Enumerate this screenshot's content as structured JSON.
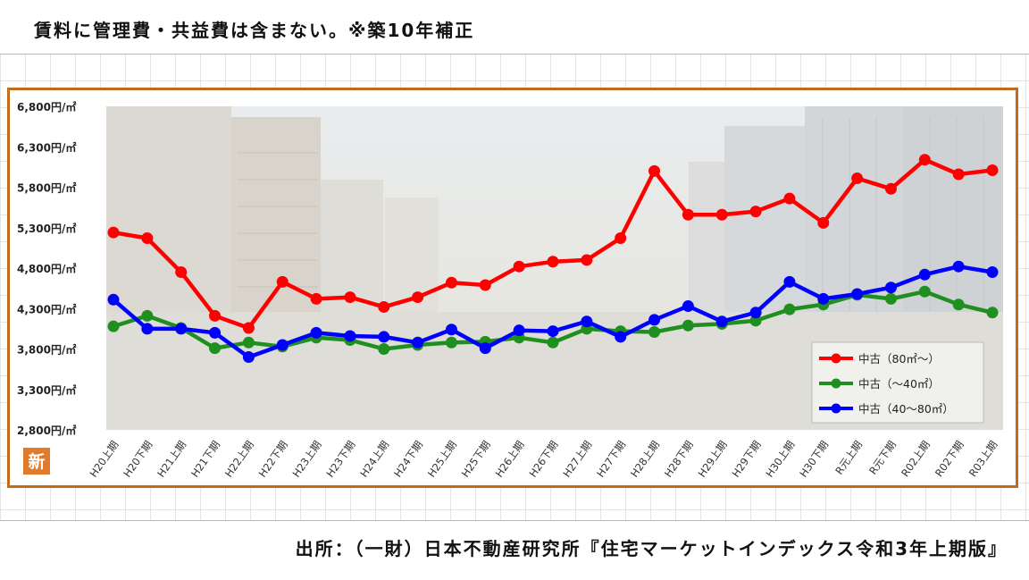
{
  "page": {
    "title": "賃料に管理費・共益費は含まない。※築10年補正",
    "source": "出所：（一財）日本不動産研究所『住宅マーケットインデックス令和3年上期版』",
    "logo_text": "新"
  },
  "chart_data": {
    "type": "line",
    "title": "",
    "xlabel": "",
    "ylabel": "",
    "ylim": [
      2800,
      6800
    ],
    "yticks": [
      2800,
      3300,
      3800,
      4300,
      4800,
      5300,
      5800,
      6300,
      6800
    ],
    "ytick_labels": [
      "2,800円/㎡",
      "3,300円/㎡",
      "3,800円/㎡",
      "4,300円/㎡",
      "4,800円/㎡",
      "5,300円/㎡",
      "5,800円/㎡",
      "6,300円/㎡",
      "6,800円/㎡"
    ],
    "categories": [
      "H20上期",
      "H20下期",
      "H21上期",
      "H21下期",
      "H22上期",
      "H22下期",
      "H23上期",
      "H23下期",
      "H24上期",
      "H24下期",
      "H25上期",
      "H25下期",
      "H26上期",
      "H26下期",
      "H27上期",
      "H27下期",
      "H28上期",
      "H28下期",
      "H29上期",
      "H29下期",
      "H30上期",
      "H30下期",
      "R元上期",
      "R元下期",
      "R02上期",
      "R02下期",
      "R03上期"
    ],
    "series": [
      {
        "name": "中古（80㎡～）",
        "color": "#ff0000",
        "values": [
          5240,
          5170,
          4750,
          4210,
          4060,
          4630,
          4420,
          4440,
          4320,
          4440,
          4620,
          4590,
          4820,
          4880,
          4900,
          5170,
          6000,
          5460,
          5460,
          5500,
          5660,
          5360,
          5910,
          5780,
          6140,
          5960,
          6010
        ]
      },
      {
        "name": "中古（～40㎡）",
        "color": "#1f8f1f",
        "values": [
          4080,
          4210,
          4060,
          3810,
          3880,
          3830,
          3940,
          3910,
          3800,
          3850,
          3880,
          3890,
          3940,
          3880,
          4050,
          4020,
          4010,
          4090,
          4110,
          4150,
          4290,
          4350,
          4470,
          4420,
          4510,
          4350,
          4250
        ]
      },
      {
        "name": "中古（40～80㎡）",
        "color": "#0000ff",
        "values": [
          4410,
          4050,
          4050,
          4000,
          3700,
          3850,
          4000,
          3960,
          3950,
          3880,
          4040,
          3810,
          4030,
          4020,
          4140,
          3950,
          4160,
          4330,
          4140,
          4250,
          4630,
          4420,
          4480,
          4560,
          4720,
          4820,
          4750
        ]
      }
    ],
    "grid": false,
    "legend": "bottom-right"
  }
}
